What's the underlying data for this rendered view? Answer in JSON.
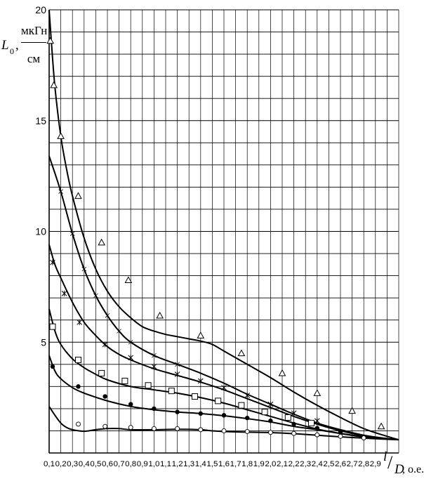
{
  "chart_data": {
    "type": "line",
    "y_axis": {
      "symbol": "L",
      "subscript": "0",
      "comma": ",",
      "unit_numerator": "мкГн",
      "unit_denominator": "см",
      "ylim": [
        0,
        20
      ],
      "labeled_ticks": [
        "20",
        "15",
        "10",
        "5"
      ]
    },
    "x_axis": {
      "symbol_numerator": "l",
      "slash": "/",
      "symbol_denominator": "D",
      "unit": ", о.е.",
      "xlim": [
        0.1,
        3.1
      ],
      "tick_labels": [
        "0,1",
        "0,2",
        "0,3",
        "0,4",
        "0,5",
        "0,6",
        "0,7",
        "0,8",
        "0,9",
        "1,0",
        "1,1",
        "1,2",
        "1,3",
        "1,4",
        "1,5",
        "1,6",
        "1,7",
        "1,8",
        "1,9",
        "2,0",
        "2,1",
        "2,2",
        "2,3",
        "2,4",
        "2,5",
        "2,6",
        "2,7",
        "2,8",
        "2,9"
      ]
    },
    "grid": true,
    "series": [
      {
        "marker": "triangle",
        "x": [
          0.1,
          0.12,
          0.15,
          0.2,
          0.25,
          0.3,
          0.4,
          0.5,
          0.6,
          0.7,
          0.8,
          0.9,
          1.0,
          1.1,
          1.2,
          1.3,
          1.4,
          1.5,
          1.6,
          1.8,
          2.0,
          2.2,
          2.4,
          2.6,
          2.8,
          3.0,
          3.1
        ],
        "y": [
          20.0,
          18.5,
          16.5,
          14.3,
          12.8,
          11.6,
          9.7,
          8.3,
          7.3,
          6.6,
          6.1,
          5.7,
          5.5,
          5.35,
          5.25,
          5.15,
          5.05,
          4.9,
          4.6,
          4.0,
          3.4,
          2.75,
          2.15,
          1.6,
          1.1,
          0.75,
          0.6
        ],
        "markers_x": [
          0.11,
          0.14,
          0.2,
          0.35,
          0.55,
          0.78,
          1.05,
          1.4,
          1.75,
          2.1,
          2.4,
          2.7,
          2.95
        ],
        "markers_y": [
          18.6,
          16.6,
          14.3,
          11.6,
          9.5,
          7.8,
          6.2,
          5.3,
          4.5,
          3.6,
          2.7,
          1.9,
          1.2
        ]
      },
      {
        "marker": "cross",
        "x": [
          0.1,
          0.2,
          0.3,
          0.4,
          0.5,
          0.6,
          0.7,
          0.8,
          1.0,
          1.2,
          1.4,
          1.6,
          1.8,
          2.0,
          2.2,
          2.4,
          2.6,
          2.8,
          3.0,
          3.1
        ],
        "y": [
          13.4,
          11.8,
          9.9,
          8.3,
          7.1,
          6.2,
          5.5,
          5.0,
          4.4,
          4.0,
          3.6,
          3.15,
          2.65,
          2.2,
          1.75,
          1.35,
          1.05,
          0.8,
          0.65,
          0.6
        ],
        "markers_x": [
          0.2,
          0.3,
          0.4,
          0.5,
          0.6,
          0.7,
          0.8,
          1.0,
          1.2
        ],
        "markers_y": [
          11.8,
          9.9,
          8.3,
          7.1,
          6.2,
          5.5,
          5.0,
          4.4,
          4.0
        ]
      },
      {
        "marker": "star",
        "x": [
          0.1,
          0.15,
          0.2,
          0.3,
          0.4,
          0.5,
          0.6,
          0.7,
          0.8,
          1.0,
          1.2,
          1.4,
          1.6,
          1.8,
          2.0,
          2.2,
          2.4,
          2.6,
          2.8,
          3.0,
          3.1
        ],
        "y": [
          9.4,
          8.5,
          7.9,
          6.8,
          5.9,
          5.3,
          4.8,
          4.45,
          4.2,
          3.8,
          3.5,
          3.2,
          2.85,
          2.45,
          2.05,
          1.65,
          1.3,
          1.0,
          0.78,
          0.65,
          0.6
        ],
        "markers_x": [
          0.13,
          0.23,
          0.36,
          0.58,
          0.8,
          1.0,
          1.2,
          1.4,
          1.6,
          1.8,
          2.0,
          2.2,
          2.4
        ],
        "markers_y": [
          8.6,
          7.2,
          5.9,
          4.9,
          4.3,
          3.9,
          3.55,
          3.25,
          2.95,
          2.6,
          2.2,
          1.8,
          1.45
        ]
      },
      {
        "marker": "square",
        "x": [
          0.1,
          0.15,
          0.2,
          0.3,
          0.4,
          0.5,
          0.6,
          0.8,
          1.0,
          1.2,
          1.4,
          1.6,
          1.8,
          2.0,
          2.2,
          2.4,
          2.6,
          2.8,
          3.0,
          3.1
        ],
        "y": [
          6.5,
          5.5,
          4.9,
          4.25,
          3.85,
          3.55,
          3.3,
          3.0,
          2.85,
          2.7,
          2.5,
          2.25,
          1.95,
          1.65,
          1.35,
          1.08,
          0.88,
          0.72,
          0.63,
          0.6
        ],
        "markers_x": [
          0.13,
          0.35,
          0.55,
          0.75,
          0.95,
          1.15,
          1.35,
          1.55,
          1.75,
          1.95,
          2.15,
          2.35
        ],
        "markers_y": [
          5.7,
          4.2,
          3.6,
          3.25,
          3.05,
          2.8,
          2.55,
          2.35,
          2.15,
          1.85,
          1.6,
          1.35
        ]
      },
      {
        "marker": "filled-circle",
        "x": [
          0.1,
          0.15,
          0.2,
          0.3,
          0.4,
          0.6,
          0.8,
          1.0,
          1.2,
          1.4,
          1.6,
          1.8,
          2.0,
          2.2,
          2.4,
          2.6,
          2.8,
          3.0,
          3.1
        ],
        "y": [
          4.4,
          3.7,
          3.35,
          2.95,
          2.7,
          2.35,
          2.1,
          1.95,
          1.85,
          1.78,
          1.68,
          1.55,
          1.4,
          1.2,
          1.05,
          0.88,
          0.74,
          0.64,
          0.6
        ],
        "markers_x": [
          0.13,
          0.35,
          0.58,
          0.8,
          1.0,
          1.2,
          1.4,
          1.6,
          1.8,
          2.0,
          2.2,
          2.4,
          2.6
        ],
        "markers_y": [
          3.9,
          3.0,
          2.55,
          2.2,
          2.0,
          1.85,
          1.78,
          1.7,
          1.58,
          1.45,
          1.3,
          1.12,
          0.95
        ]
      },
      {
        "marker": "open-circle",
        "x": [
          0.1,
          0.15,
          0.2,
          0.25,
          0.3,
          0.4,
          0.5,
          0.6,
          0.7,
          0.8,
          1.0,
          1.2,
          1.4,
          1.5,
          1.7,
          2.0,
          2.2,
          2.4,
          2.6,
          2.8,
          3.0,
          3.1
        ],
        "y": [
          2.1,
          1.7,
          1.35,
          1.15,
          1.05,
          0.98,
          1.05,
          1.1,
          1.1,
          1.05,
          1.05,
          1.07,
          1.05,
          1.0,
          0.95,
          0.92,
          0.87,
          0.8,
          0.73,
          0.67,
          0.62,
          0.6
        ],
        "markers_x": [
          0.35,
          0.58,
          0.8,
          1.0,
          1.2,
          1.4,
          1.6,
          1.8,
          2.0,
          2.2,
          2.4,
          2.6,
          2.8
        ],
        "markers_y": [
          1.3,
          1.2,
          1.15,
          1.1,
          1.1,
          1.05,
          1.0,
          0.97,
          0.93,
          0.88,
          0.82,
          0.75,
          0.68
        ]
      }
    ]
  }
}
